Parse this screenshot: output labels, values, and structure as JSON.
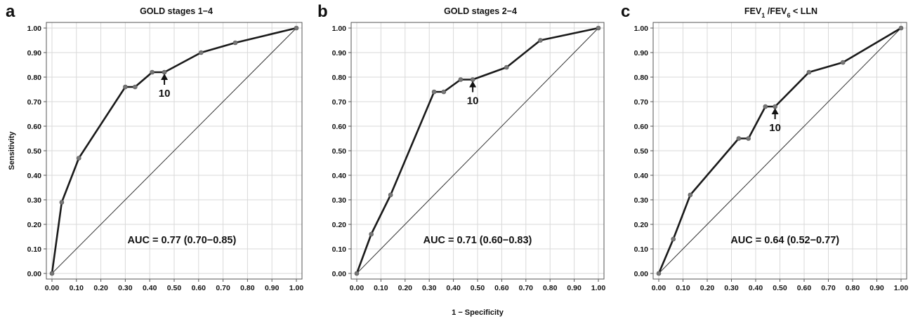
{
  "chart_data": [
    {
      "type": "line",
      "letter": "a",
      "title": "GOLD stages 1−4",
      "xlabel": "",
      "ylabel": "Sensitivity",
      "xlim": [
        0,
        1
      ],
      "ylim": [
        0,
        1
      ],
      "xticks": [
        "0.00",
        "0.10",
        "0.20",
        "0.30",
        "0.40",
        "0.50",
        "0.60",
        "0.70",
        "0.80",
        "0.90",
        "1.00"
      ],
      "yticks": [
        "0.00",
        "0.10",
        "0.20",
        "0.30",
        "0.40",
        "0.50",
        "0.60",
        "0.70",
        "0.80",
        "0.90",
        "1.00"
      ],
      "grid": true,
      "x": [
        0.0,
        0.04,
        0.11,
        0.3,
        0.34,
        0.41,
        0.46,
        0.61,
        0.75,
        1.0
      ],
      "y": [
        0.0,
        0.29,
        0.47,
        0.76,
        0.76,
        0.82,
        0.82,
        0.9,
        0.94,
        1.0
      ],
      "reference_line": [
        [
          0,
          0
        ],
        [
          1,
          1
        ]
      ],
      "annotation": {
        "text": "10",
        "x": 0.46,
        "y": 0.82
      },
      "auc": "AUC  = 0.77 (0.70−0.85)"
    },
    {
      "type": "line",
      "letter": "b",
      "title": "GOLD stages 2−4",
      "xlabel": "1 − Specificity",
      "ylabel": "",
      "xlim": [
        0,
        1
      ],
      "ylim": [
        0,
        1
      ],
      "xticks": [
        "0.00",
        "0.10",
        "0.20",
        "0.30",
        "0.40",
        "0.50",
        "0.60",
        "0.70",
        "0.80",
        "0.90",
        "1.00"
      ],
      "yticks": [
        "0.00",
        "0.10",
        "0.20",
        "0.30",
        "0.40",
        "0.50",
        "0.60",
        "0.70",
        "0.80",
        "0.90",
        "1.00"
      ],
      "grid": true,
      "x": [
        0.0,
        0.06,
        0.14,
        0.32,
        0.36,
        0.43,
        0.48,
        0.62,
        0.76,
        1.0
      ],
      "y": [
        0.0,
        0.16,
        0.32,
        0.74,
        0.74,
        0.79,
        0.79,
        0.84,
        0.95,
        1.0
      ],
      "reference_line": [
        [
          0,
          0
        ],
        [
          1,
          1
        ]
      ],
      "annotation": {
        "text": "10",
        "x": 0.48,
        "y": 0.79
      },
      "auc": "AUC = 0.71 (0.60−0.83)"
    },
    {
      "type": "line",
      "letter": "c",
      "title": "FEV₁ /FEV₆ < LLN",
      "title_parts": [
        "FEV",
        "1",
        " /FEV",
        "6",
        " < LLN"
      ],
      "xlabel": "",
      "ylabel": "",
      "xlim": [
        0,
        1
      ],
      "ylim": [
        0,
        1
      ],
      "xticks": [
        "0.00",
        "0.10",
        "0.20",
        "0.30",
        "0.40",
        "0.50",
        "0.60",
        "0.70",
        "0.80",
        "0.90",
        "1.00"
      ],
      "yticks": [
        "0.00",
        "0.10",
        "0.20",
        "0.30",
        "0.40",
        "0.50",
        "0.60",
        "0.70",
        "0.80",
        "0.90",
        "1.00"
      ],
      "grid": true,
      "x": [
        0.0,
        0.06,
        0.13,
        0.33,
        0.37,
        0.44,
        0.48,
        0.62,
        0.76,
        1.0
      ],
      "y": [
        0.0,
        0.14,
        0.32,
        0.55,
        0.55,
        0.68,
        0.68,
        0.82,
        0.86,
        1.0
      ],
      "reference_line": [
        [
          0,
          0
        ],
        [
          1,
          1
        ]
      ],
      "annotation": {
        "text": "10",
        "x": 0.48,
        "y": 0.68
      },
      "auc": "AUC = 0.64 (0.52−0.77)"
    }
  ],
  "style": {
    "grid_color": "#d9d9d9",
    "curve_color": "#1a1a1a",
    "marker_color": "#777777",
    "reference_color": "#333333",
    "frame_color": "#555555"
  }
}
